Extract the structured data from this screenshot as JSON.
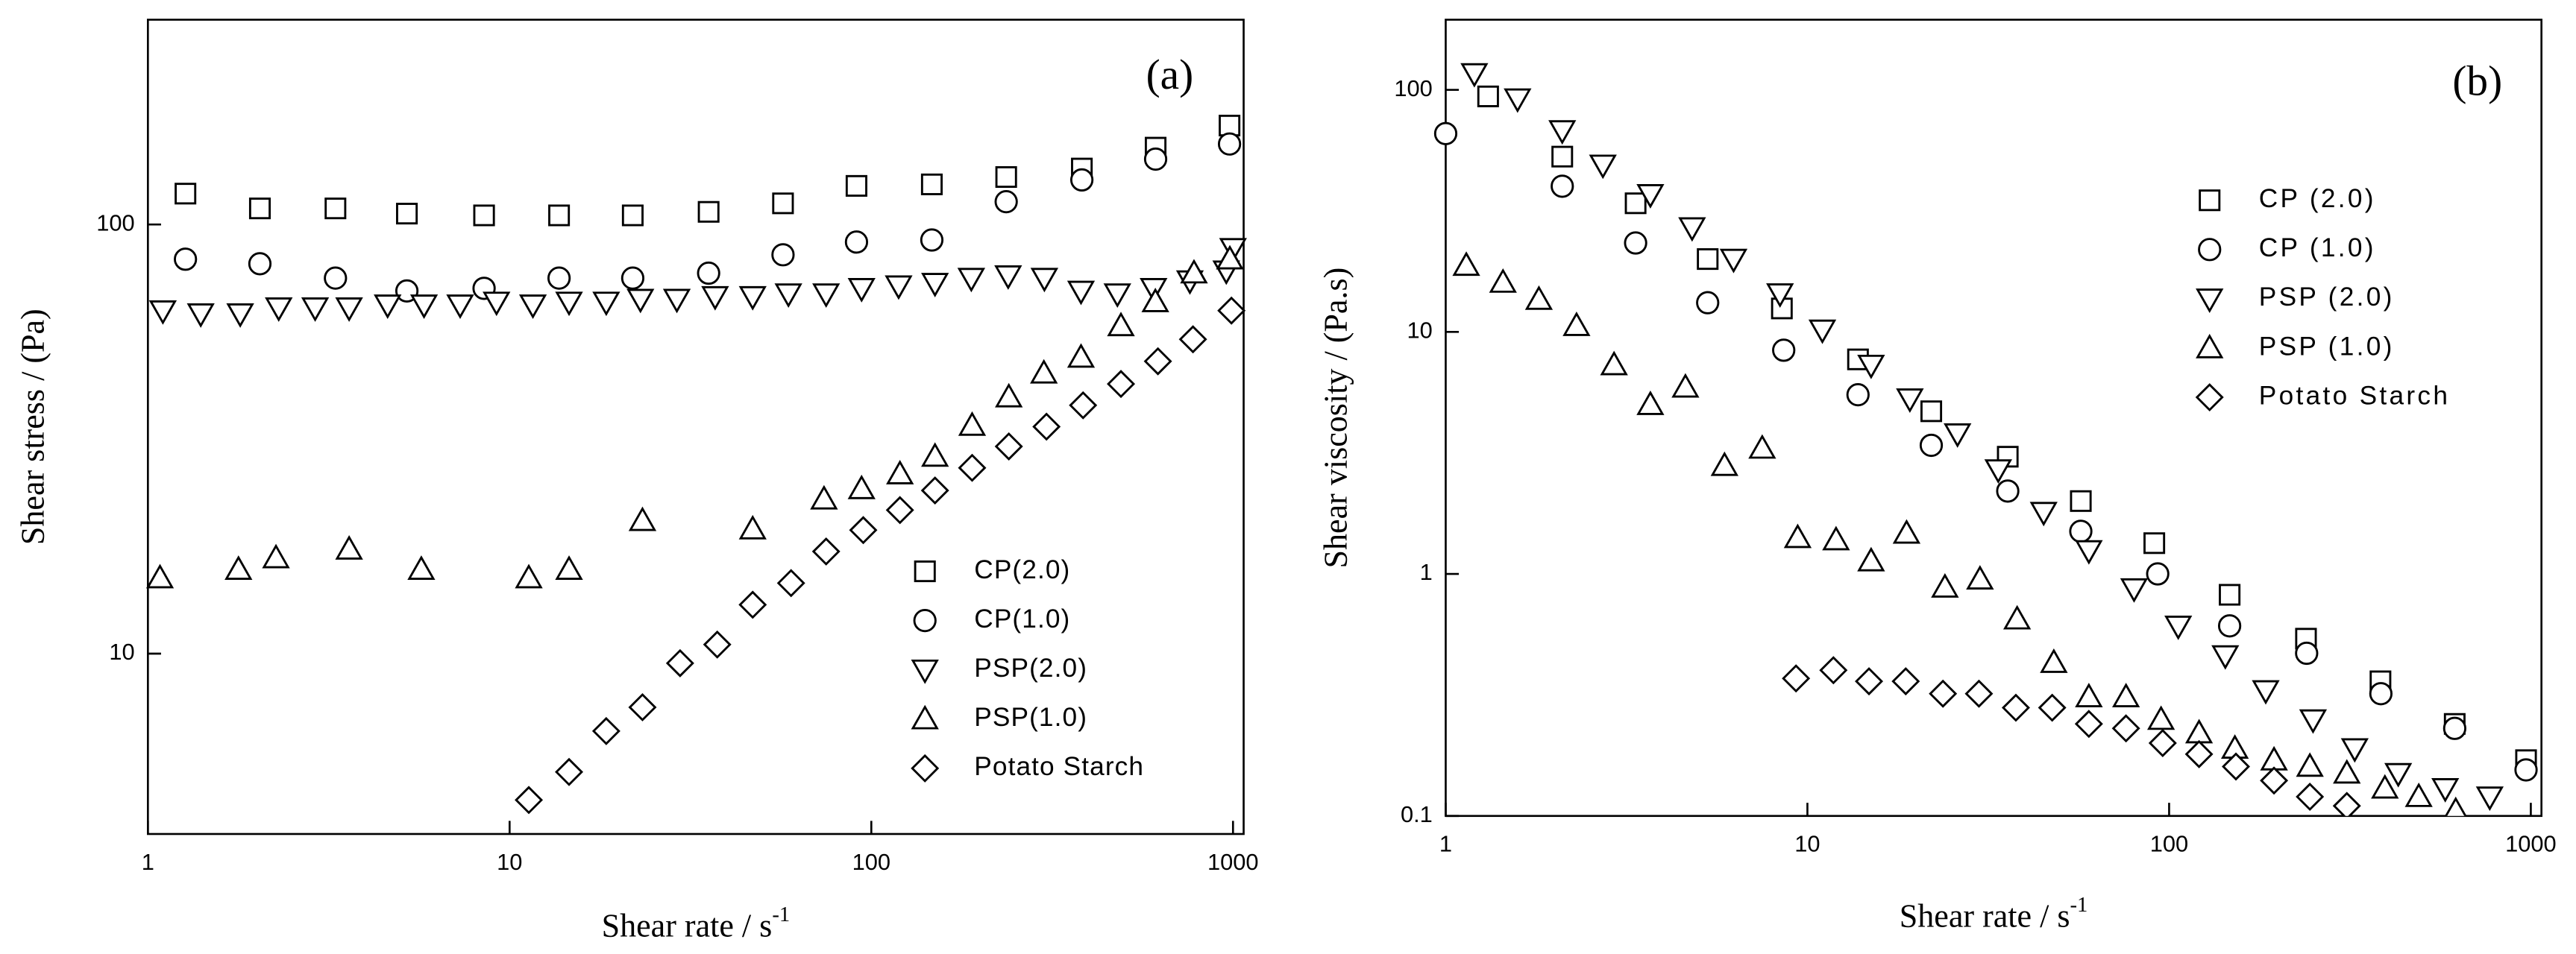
{
  "chart_data": [
    {
      "type": "scatter",
      "title": "(a)",
      "xlabel": "Shear rate / s",
      "xlabel_sup": "-1",
      "ylabel": "Shear stress / (Pa)",
      "xscale": "log",
      "yscale": "log",
      "xlim": [
        1,
        1070
      ],
      "ylim": [
        3.8,
        300
      ],
      "xticks": [
        1,
        10,
        100,
        1000
      ],
      "yticks": [
        10,
        100
      ],
      "legend": "lower right",
      "series": [
        {
          "name": "CP(2.0)",
          "marker": "square",
          "color": "#000000",
          "x": [
            1.27,
            2.04,
            3.3,
            5.2,
            8.5,
            13.7,
            21.9,
            35.5,
            57,
            91,
            147,
            236,
            382,
            611,
            978
          ],
          "values": [
            118,
            109,
            109,
            106,
            105,
            105,
            105,
            107,
            112,
            123,
            124,
            129,
            135,
            151,
            170
          ]
        },
        {
          "name": "CP(1.0)",
          "marker": "circle",
          "color": "#000000",
          "x": [
            1.27,
            2.04,
            3.3,
            5.2,
            8.5,
            13.7,
            21.9,
            35.5,
            57,
            91,
            147,
            236,
            382,
            611,
            978
          ],
          "values": [
            83,
            81,
            75,
            70,
            71,
            75,
            75,
            77,
            85,
            91,
            92,
            113,
            127,
            142,
            154
          ]
        },
        {
          "name": "PSP(2.0)",
          "marker": "triangle-down",
          "color": "#000000",
          "x": [
            1.1,
            1.4,
            1.8,
            2.3,
            2.9,
            3.6,
            4.6,
            5.8,
            7.3,
            9.2,
            11.6,
            14.6,
            18.5,
            23,
            29,
            37,
            47,
            59,
            75,
            94,
            119,
            150,
            189,
            239,
            301,
            380,
            479,
            603,
            760,
            958,
            1000
          ],
          "values": [
            63,
            62,
            62,
            64,
            64,
            64,
            65,
            65,
            65,
            66,
            65,
            66,
            66,
            67,
            67,
            68,
            68,
            69,
            69,
            71,
            72,
            73,
            75,
            76,
            75,
            70,
            69,
            71,
            74,
            78,
            88
          ]
        },
        {
          "name": "PSP(1.0)",
          "marker": "triangle-up",
          "color": "#000000",
          "x": [
            1.08,
            1.78,
            2.26,
            3.6,
            5.7,
            11.3,
            14.6,
            23.3,
            47,
            74,
            94,
            120,
            150,
            190,
            240,
            300,
            380,
            490,
            610,
            780,
            980
          ],
          "values": [
            15,
            15.7,
            16.7,
            17.5,
            15.7,
            15,
            15.7,
            20.4,
            19.5,
            22.9,
            24.2,
            26.2,
            28.8,
            34,
            39.6,
            45,
            49,
            58,
            66,
            77,
            83
          ]
        },
        {
          "name": "Potato Starch",
          "marker": "diamond",
          "color": "#000000",
          "x": [
            11.3,
            14.6,
            18.5,
            23.3,
            29.6,
            37.5,
            47,
            60,
            75,
            95,
            120,
            150,
            190,
            240,
            305,
            385,
            490,
            620,
            775,
            990
          ],
          "values": [
            4.56,
            5.3,
            6.6,
            7.5,
            9.5,
            10.5,
            13,
            14.6,
            17.3,
            19.4,
            21.6,
            24,
            27.1,
            30.4,
            33.8,
            37.9,
            42.5,
            48,
            54,
            63
          ]
        }
      ]
    },
    {
      "type": "scatter",
      "title": "(b)",
      "xlabel": "Shear rate / s",
      "xlabel_sup": "-1",
      "ylabel": "Shear viscosity / (Pa.s)",
      "xscale": "log",
      "yscale": "log",
      "xlim": [
        1,
        1070
      ],
      "ylim": [
        0.1,
        195
      ],
      "xticks": [
        1,
        10,
        100,
        1000
      ],
      "yticks": [
        0.1,
        1,
        10,
        100
      ],
      "legend": "upper right",
      "series": [
        {
          "name": "CP (2.0)",
          "marker": "square",
          "color": "#000000",
          "x": [
            1.31,
            2.1,
            3.35,
            5.3,
            8.5,
            13.8,
            22,
            35.8,
            57,
            91,
            147,
            239,
            384,
            616,
            970
          ],
          "values": [
            94,
            53,
            34,
            20,
            12.5,
            7.7,
            4.7,
            3.05,
            2,
            1.34,
            0.82,
            0.54,
            0.36,
            0.24,
            0.17
          ]
        },
        {
          "name": "CP (1.0)",
          "marker": "circle",
          "color": "#000000",
          "x": [
            1.0,
            2.1,
            3.35,
            5.3,
            8.6,
            13.8,
            22,
            35.8,
            57,
            93,
            147,
            240,
            385,
            616,
            970
          ],
          "values": [
            66,
            40,
            23.3,
            13.2,
            8.4,
            5.5,
            3.4,
            2.2,
            1.5,
            1.0,
            0.61,
            0.47,
            0.32,
            0.23,
            0.155
          ]
        },
        {
          "name": "PSP (2.0)",
          "marker": "triangle-down",
          "color": "#000000",
          "x": [
            1.2,
            1.58,
            2.1,
            2.72,
            3.68,
            4.8,
            6.25,
            8.4,
            11,
            15,
            19.2,
            26,
            33.7,
            45,
            60,
            80,
            106,
            143,
            185,
            250,
            326,
            430,
            580,
            770
          ],
          "values": [
            117,
            92,
            68,
            49,
            37,
            27,
            20,
            14.4,
            10.2,
            7.3,
            5.3,
            3.8,
            2.7,
            1.8,
            1.25,
            0.87,
            0.61,
            0.46,
            0.33,
            0.25,
            0.19,
            0.15,
            0.13,
            0.12
          ]
        },
        {
          "name": "PSP (1.0)",
          "marker": "triangle-up",
          "color": "#000000",
          "x": [
            1.14,
            1.44,
            1.81,
            2.3,
            2.92,
            3.68,
            4.6,
            5.9,
            7.5,
            9.4,
            12,
            15,
            18.8,
            24,
            30,
            38,
            48,
            60,
            76,
            95,
            121,
            152,
            195,
            245,
            310,
            395,
            490,
            620
          ],
          "values": [
            18.8,
            16,
            13.6,
            10.6,
            7.3,
            5,
            5.9,
            2.8,
            3.3,
            1.41,
            1.38,
            1.13,
            1.47,
            0.88,
            0.95,
            0.65,
            0.43,
            0.31,
            0.31,
            0.25,
            0.22,
            0.19,
            0.17,
            0.16,
            0.15,
            0.13,
            0.12,
            0.105
          ]
        },
        {
          "name": "Potato Starch",
          "marker": "diamond",
          "color": "#000000",
          "x": [
            9.3,
            11.8,
            14.8,
            18.7,
            23.7,
            29.8,
            37.7,
            47.5,
            60,
            76,
            96,
            121,
            153,
            195,
            245,
            310
          ],
          "values": [
            0.37,
            0.4,
            0.36,
            0.36,
            0.32,
            0.32,
            0.28,
            0.28,
            0.24,
            0.23,
            0.2,
            0.18,
            0.16,
            0.14,
            0.12,
            0.11
          ]
        }
      ]
    }
  ]
}
